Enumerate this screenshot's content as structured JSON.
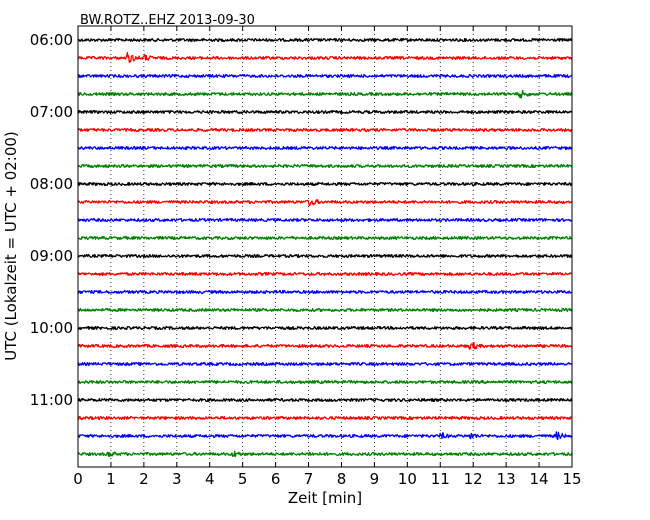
{
  "chart_data": {
    "type": "line",
    "title": "BW.ROTZ..EHZ 2013-09-30",
    "xlabel": "Zeit  [min]",
    "ylabel": "UTC (Lokalzeit = UTC + 02:00)",
    "xlim": [
      0,
      15
    ],
    "x_ticks": [
      "0",
      "1",
      "2",
      "3",
      "4",
      "5",
      "6",
      "7",
      "8",
      "9",
      "10",
      "11",
      "12",
      "13",
      "14",
      "15"
    ],
    "y_ticks": [
      "06:00",
      "07:00",
      "08:00",
      "09:00",
      "10:00",
      "11:00"
    ],
    "grid": "vertical dotted",
    "series_colors": [
      "#000000",
      "#ff0000",
      "#0000ff",
      "#008000"
    ],
    "traces": [
      {
        "start": "06:00",
        "color": "#000000",
        "events": []
      },
      {
        "start": "06:15",
        "color": "#ff0000",
        "events": [
          {
            "t": 1.5,
            "amp": 6
          },
          {
            "t": 2.0,
            "amp": 4
          }
        ]
      },
      {
        "start": "06:30",
        "color": "#0000ff",
        "events": []
      },
      {
        "start": "06:45",
        "color": "#008000",
        "events": [
          {
            "t": 13.4,
            "amp": 5
          }
        ]
      },
      {
        "start": "07:00",
        "color": "#000000",
        "events": []
      },
      {
        "start": "07:15",
        "color": "#ff0000",
        "events": []
      },
      {
        "start": "07:30",
        "color": "#0000ff",
        "events": []
      },
      {
        "start": "07:45",
        "color": "#008000",
        "events": []
      },
      {
        "start": "08:00",
        "color": "#000000",
        "events": []
      },
      {
        "start": "08:15",
        "color": "#ff0000",
        "events": [
          {
            "t": 7.0,
            "amp": 5
          }
        ]
      },
      {
        "start": "08:30",
        "color": "#0000ff",
        "events": []
      },
      {
        "start": "08:45",
        "color": "#008000",
        "events": []
      },
      {
        "start": "09:00",
        "color": "#000000",
        "events": []
      },
      {
        "start": "09:15",
        "color": "#ff0000",
        "events": []
      },
      {
        "start": "09:30",
        "color": "#0000ff",
        "events": []
      },
      {
        "start": "09:45",
        "color": "#008000",
        "events": []
      },
      {
        "start": "10:00",
        "color": "#000000",
        "events": []
      },
      {
        "start": "10:15",
        "color": "#ff0000",
        "events": [
          {
            "t": 11.9,
            "amp": 5
          }
        ]
      },
      {
        "start": "10:30",
        "color": "#0000ff",
        "events": []
      },
      {
        "start": "10:45",
        "color": "#008000",
        "events": []
      },
      {
        "start": "11:00",
        "color": "#000000",
        "events": []
      },
      {
        "start": "11:15",
        "color": "#ff0000",
        "events": []
      },
      {
        "start": "11:30",
        "color": "#0000ff",
        "events": [
          {
            "t": 11.0,
            "amp": 4
          },
          {
            "t": 11.9,
            "amp": 4
          },
          {
            "t": 14.5,
            "amp": 5
          }
        ]
      },
      {
        "start": "11:45",
        "color": "#008000",
        "events": [
          {
            "t": 0.9,
            "amp": 4
          },
          {
            "t": 4.7,
            "amp": 4
          },
          {
            "t": 7.0,
            "amp": 3
          }
        ]
      }
    ]
  }
}
